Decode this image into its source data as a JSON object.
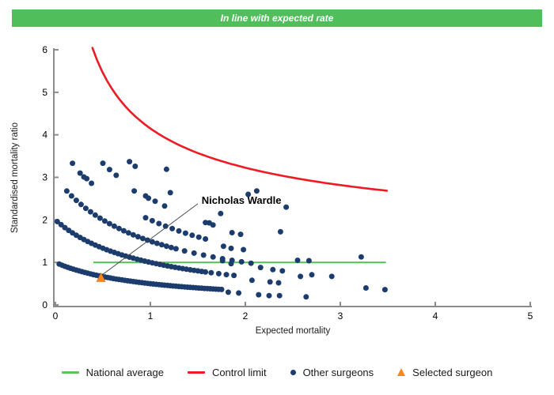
{
  "banner": {
    "text": "In line with expected rate",
    "bg": "#50be5a",
    "text_color": "#ffffff"
  },
  "colors": {
    "national_average": "#5cc35c",
    "control_limit": "#ed1c24",
    "other_surgeons": "#1d3c6e",
    "selected_surgeon": "#f6861f",
    "axis": "#8c8c8c",
    "leader_line": "#444444"
  },
  "chart_data": {
    "type": "scatter",
    "title": "In line with expected rate",
    "xlabel": "Expected mortality",
    "ylabel": "Standardised mortality ratio",
    "xlim": [
      0,
      5
    ],
    "ylim": [
      0,
      6
    ],
    "x_ticks": [
      0,
      1,
      2,
      3,
      4,
      5
    ],
    "y_ticks": [
      0,
      1,
      2,
      3,
      4,
      5,
      6
    ],
    "grid": false,
    "legend_position": "bottom",
    "national_average": {
      "y": 1,
      "x_start": 0.4,
      "x_end": 3.48
    },
    "control_limit": {
      "formula": "y = a + b/sqrt(x)",
      "a": 1,
      "b": 3.15,
      "x_start": 0.39,
      "x_end": 3.5
    },
    "other_surgeons": {
      "marker": "dot",
      "bands_formula": "y = deaths/(1+x), sampled over segments [start,end,step]",
      "bands": [
        {
          "deaths": 1,
          "segments": [
            [
              0.04,
              1.75,
              0.03
            ]
          ]
        },
        {
          "deaths": 2,
          "segments": [
            [
              0.02,
              1.6,
              0.04
            ],
            [
              1.64,
              1.9,
              0.08
            ]
          ]
        },
        {
          "deaths": 3,
          "segments": [
            [
              0.12,
              1.3,
              0.05
            ],
            [
              1.36,
              2.1,
              0.1
            ]
          ]
        },
        {
          "deaths": 4,
          "segments": [
            [
              0.95,
              1.6,
              0.07
            ]
          ]
        },
        {
          "deaths": 5,
          "segments": [
            [
              0.5,
              0.64,
              0.07
            ],
            [
              0.95,
              1.15,
              0.1
            ],
            [
              1.58,
              1.66,
              0.08
            ]
          ]
        },
        {
          "deaths": 6,
          "segments": [
            [
              0.78,
              0.84,
              0.06
            ]
          ]
        }
      ],
      "points": [
        [
          0.18,
          3.33
        ],
        [
          0.26,
          3.1
        ],
        [
          0.3,
          3.01
        ],
        [
          0.33,
          2.97
        ],
        [
          0.38,
          2.86
        ],
        [
          0.83,
          2.68
        ],
        [
          0.98,
          2.51
        ],
        [
          1.17,
          3.19
        ],
        [
          1.21,
          2.64
        ],
        [
          1.62,
          1.93
        ],
        [
          1.74,
          2.15
        ],
        [
          1.86,
          1.7
        ],
        [
          1.95,
          1.66
        ],
        [
          2.03,
          2.6
        ],
        [
          2.12,
          2.68
        ],
        [
          2.37,
          1.72
        ],
        [
          2.43,
          2.3
        ],
        [
          1.77,
          1.38
        ],
        [
          1.85,
          1.33
        ],
        [
          1.98,
          1.3
        ],
        [
          1.76,
          1.04
        ],
        [
          1.85,
          0.97
        ],
        [
          2.16,
          0.88
        ],
        [
          2.29,
          0.83
        ],
        [
          2.39,
          0.8
        ],
        [
          2.55,
          1.05
        ],
        [
          2.67,
          1.04
        ],
        [
          3.22,
          1.13
        ],
        [
          2.07,
          0.58
        ],
        [
          2.26,
          0.54
        ],
        [
          2.35,
          0.52
        ],
        [
          2.58,
          0.67
        ],
        [
          2.7,
          0.71
        ],
        [
          2.91,
          0.67
        ],
        [
          1.82,
          0.3
        ],
        [
          1.93,
          0.28
        ],
        [
          2.14,
          0.24
        ],
        [
          2.25,
          0.22
        ],
        [
          2.36,
          0.22
        ],
        [
          2.64,
          0.19
        ],
        [
          3.27,
          0.4
        ],
        [
          3.47,
          0.36
        ]
      ]
    },
    "selected_surgeon": {
      "x": 0.48,
      "y": 0.65,
      "marker": "triangle"
    },
    "annotation": {
      "text": "Nicholas Wardle",
      "label_x": 1.54,
      "label_y": 2.45,
      "leader_from": [
        1.5,
        2.38
      ],
      "leader_to": [
        0.5,
        0.72
      ]
    }
  },
  "legend": {
    "items": [
      {
        "label": "National average",
        "marker": "line",
        "color_key": "national_average"
      },
      {
        "label": "Control limit",
        "marker": "line",
        "color_key": "control_limit"
      },
      {
        "label": "Other surgeons",
        "marker": "dot",
        "color_key": "other_surgeons"
      },
      {
        "label": "Selected surgeon",
        "marker": "triangle",
        "color_key": "selected_surgeon"
      }
    ]
  }
}
